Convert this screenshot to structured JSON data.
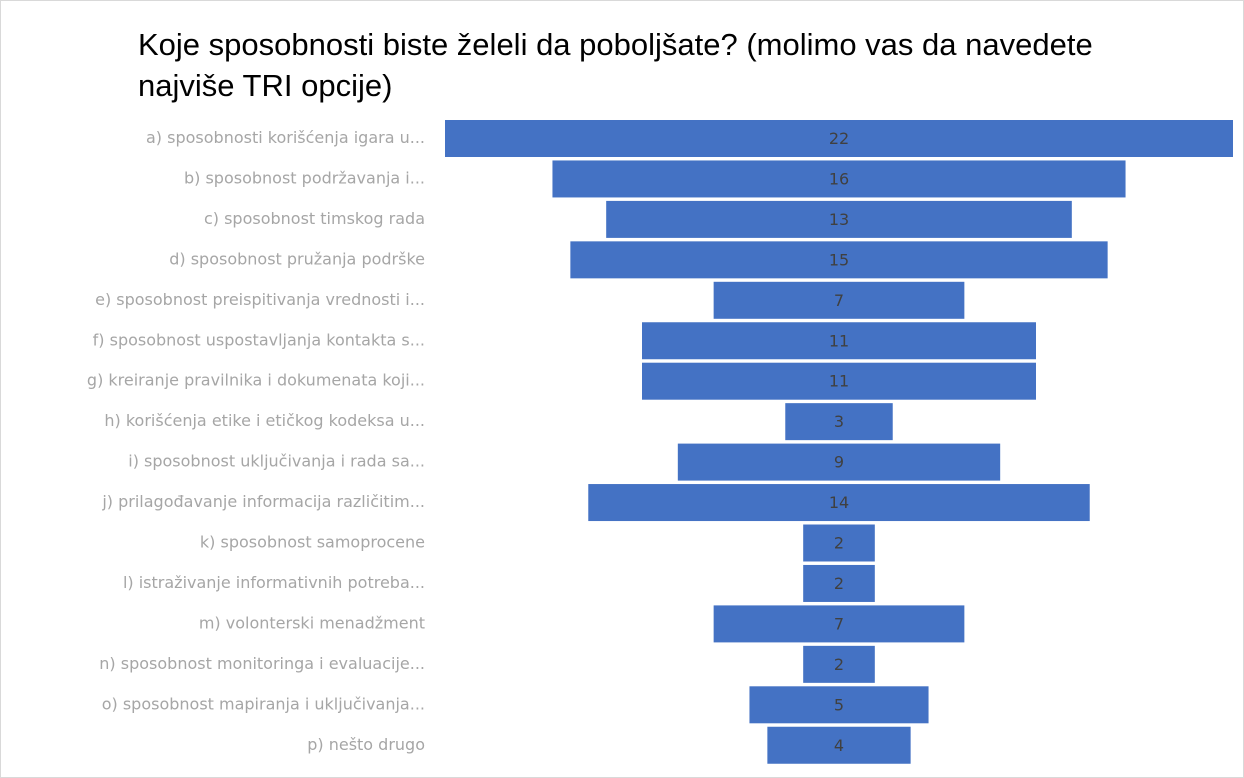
{
  "chart_data": {
    "type": "funnel",
    "title": "Koje sposobnosti biste želeli da poboljšate? (molimo vas da navedete najviše TRI opcije)",
    "categories": [
      "a) sposobnosti korišćenja igara u...",
      "b) sposobnost podržavanja i...",
      "c) sposobnost timskog rada",
      "d) sposobnost pružanja podrške",
      "e) sposobnost preispitivanja vrednosti i...",
      "f) sposobnost uspostavljanja kontakta s...",
      "g) kreiranje pravilnika i dokumenata koji...",
      "h) korišćenja etike i etičkog kodeksa u...",
      "i) sposobnost uključivanja i rada sa...",
      "j) prilagođavanje informacija različitim...",
      "k) sposobnost samoprocene",
      "l) istraživanje informativnih potreba...",
      "m) volonterski menadžment",
      "n) sposobnost monitoringa i evaluacije...",
      "o) sposobnost mapiranja i uključivanja...",
      "p) nešto drugo"
    ],
    "values": [
      22,
      16,
      13,
      15,
      7,
      11,
      11,
      3,
      9,
      14,
      2,
      2,
      7,
      2,
      5,
      4
    ],
    "color": "#4472c4"
  }
}
